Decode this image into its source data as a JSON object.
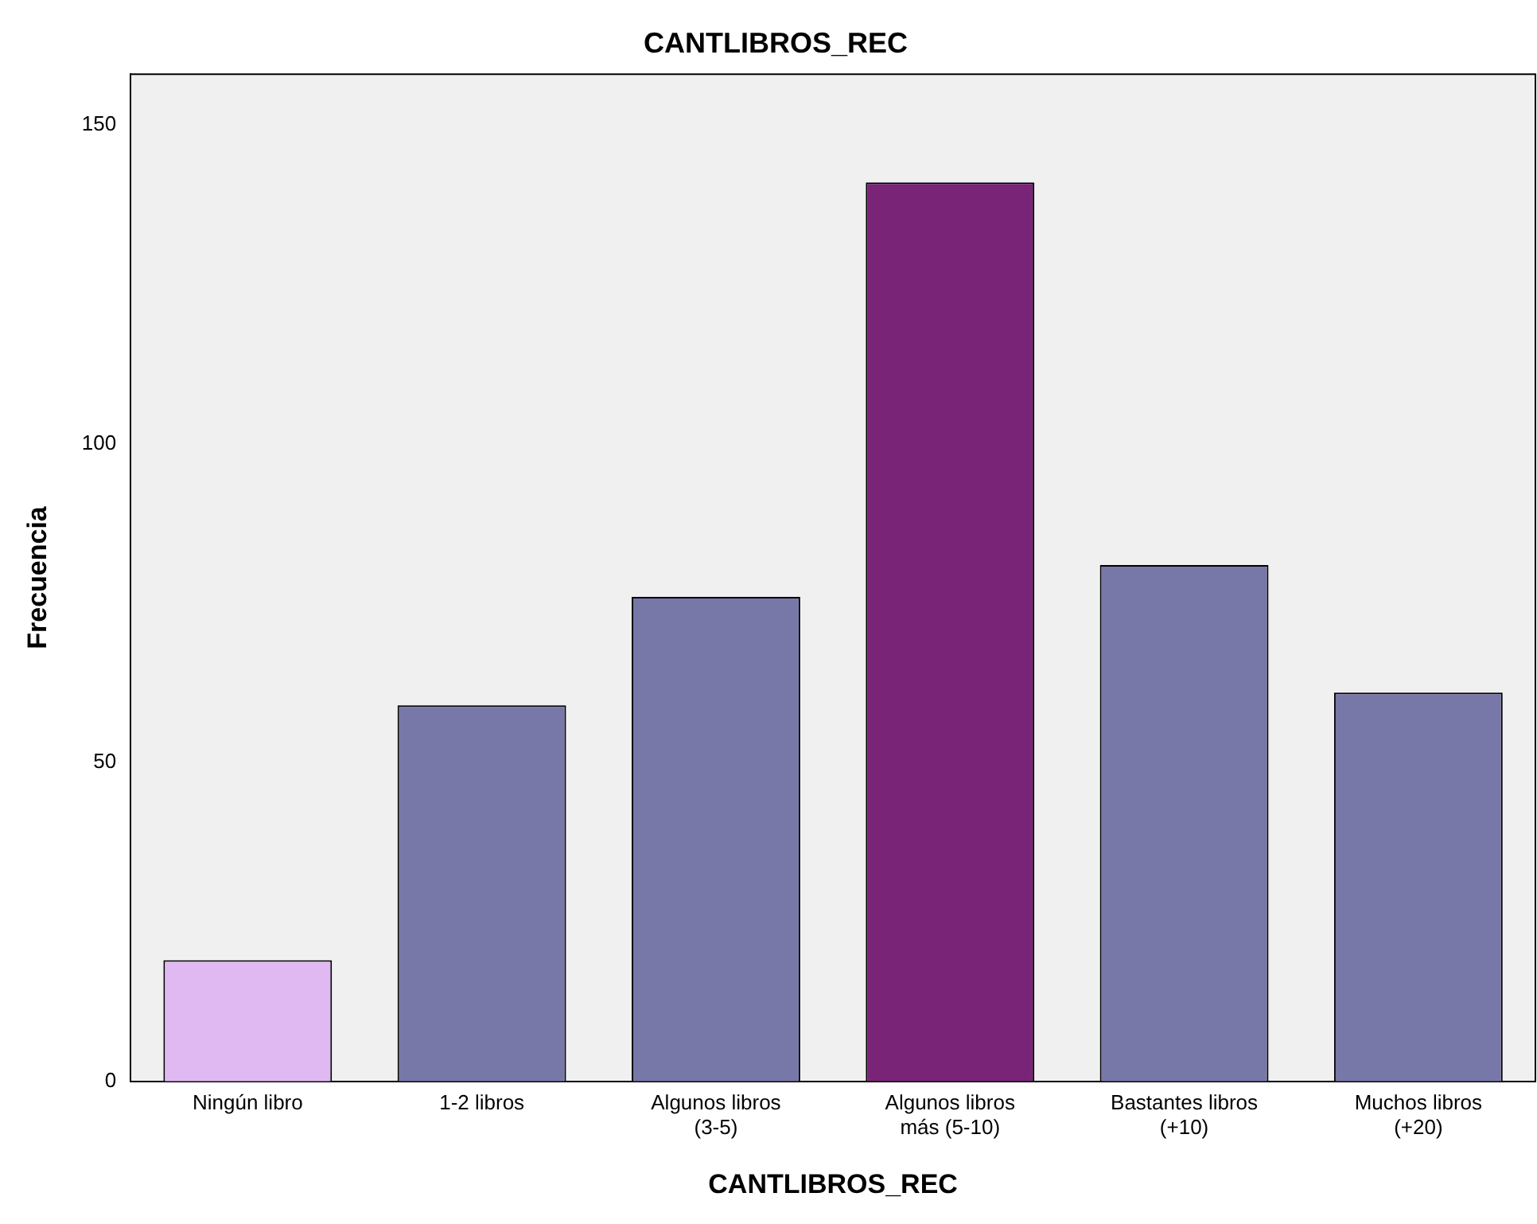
{
  "chart_data": {
    "type": "bar",
    "title": "CANTLIBROS_REC",
    "xlabel": "CANTLIBROS_REC",
    "ylabel": "Frecuencia",
    "categories": [
      "Ningún libro",
      "1-2 libros",
      "Algunos libros\n(3-5)",
      "Algunos libros\nmás (5-10)",
      "Bastantes libros\n(+10)",
      "Muchos libros\n(+20)"
    ],
    "values": [
      19,
      59,
      76,
      141,
      81,
      61
    ],
    "colors": [
      "#e0b8f2",
      "#7878a8",
      "#7878a8",
      "#7a2478",
      "#7878a8",
      "#7878a8"
    ],
    "ylim": [
      0,
      158
    ],
    "yticks": [
      0,
      50,
      100,
      150
    ],
    "grid": false,
    "legend": false
  }
}
